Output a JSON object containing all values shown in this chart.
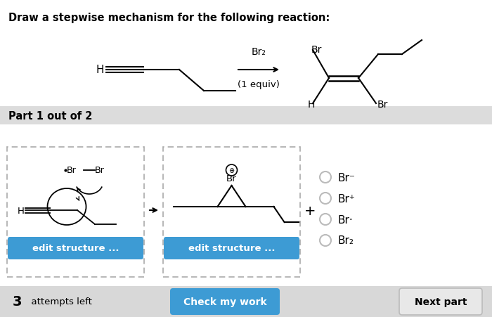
{
  "title": "Draw a stepwise mechanism for the following reaction:",
  "part_label": "Part 1 out of 2",
  "reagent_above": "Br₂",
  "reagent_below": "(1 equiv)",
  "radio_options": [
    "Br⁻",
    "Br⁺",
    "Br·",
    "Br₂"
  ],
  "attempts_text": "3",
  "attempts_suffix": "  attempts left",
  "check_btn": "Check my work",
  "next_btn": "Next part",
  "bg_color": "#ffffff",
  "sep_bg": "#dcdcdc",
  "btn_blue": "#3d9bd4",
  "dashed_box_color": "#aaaaaa",
  "bot_bar_color": "#d8d8d8"
}
